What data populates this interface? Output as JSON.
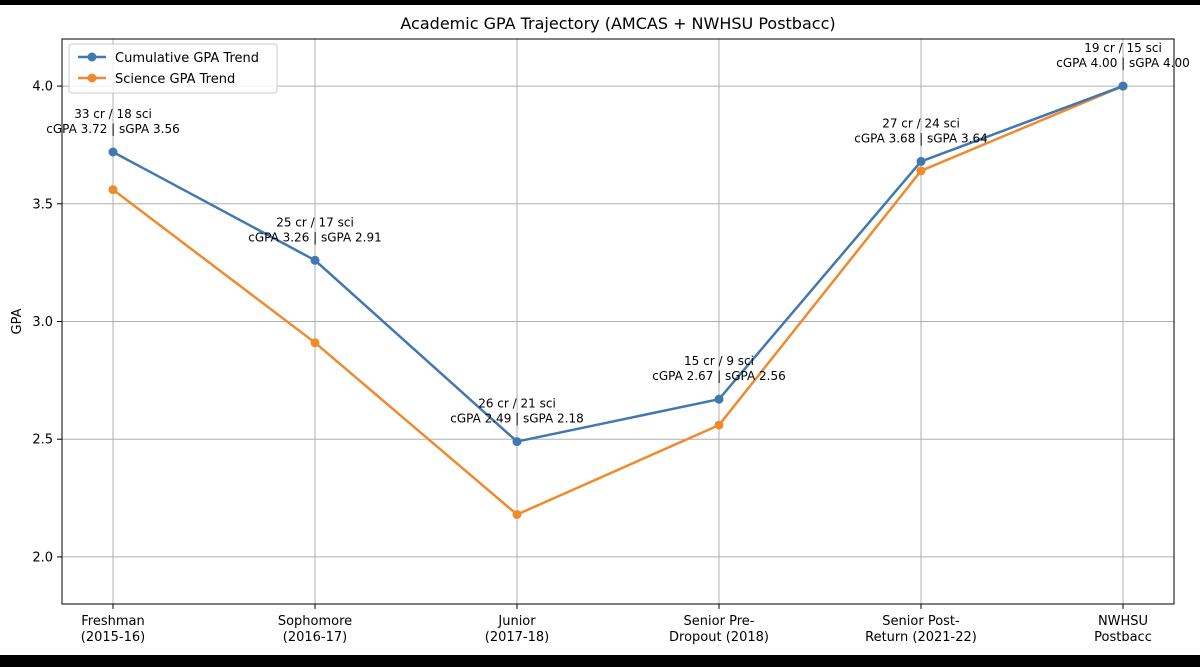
{
  "chart_data": {
    "type": "line",
    "title": "Academic GPA Trajectory (AMCAS + NWHSU Postbacc)",
    "xlabel": "",
    "ylabel": "GPA",
    "categories": [
      [
        "Freshman",
        "(2015-16)"
      ],
      [
        "Sophomore",
        "(2016-17)"
      ],
      [
        "Junior",
        "(2017-18)"
      ],
      [
        "Senior Pre-",
        "Dropout (2018)"
      ],
      [
        "Senior Post-",
        "Return (2021-22)"
      ],
      [
        "NWHSU",
        "Postbacc"
      ]
    ],
    "ylim": [
      1.8,
      4.2
    ],
    "yticks": [
      "2.0",
      "2.5",
      "3.0",
      "3.5",
      "4.0"
    ],
    "grid": true,
    "legend_position": "top-left",
    "series": [
      {
        "name": "Cumulative GPA Trend",
        "color": "#4178b0",
        "values": [
          3.72,
          3.26,
          2.49,
          2.67,
          3.68,
          4.0
        ]
      },
      {
        "name": "Science GPA Trend",
        "color": "#ef8a2e",
        "values": [
          3.56,
          2.91,
          2.18,
          2.56,
          3.64,
          4.0
        ]
      }
    ],
    "annotations": [
      [
        "33 cr / 18 sci",
        "cGPA 3.72 | sGPA 3.56"
      ],
      [
        "25 cr / 17 sci",
        "cGPA 3.26 | sGPA 2.91"
      ],
      [
        "26 cr / 21 sci",
        "cGPA 2.49 | sGPA 2.18"
      ],
      [
        "15 cr / 9 sci",
        "cGPA 2.67 | sGPA 2.56"
      ],
      [
        "27 cr / 24 sci",
        "cGPA 3.68 | sGPA 3.64"
      ],
      [
        "19 cr / 15 sci",
        "cGPA 4.00 | sGPA 4.00"
      ]
    ]
  }
}
